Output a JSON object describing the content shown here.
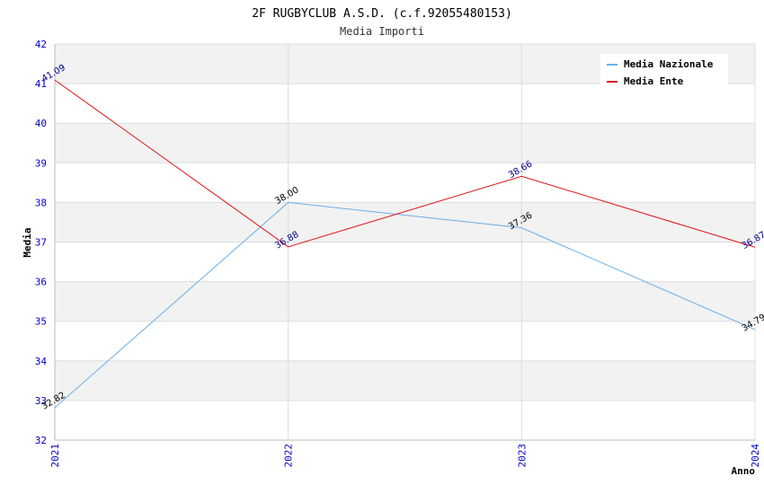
{
  "chart_data": {
    "type": "line",
    "title": "2F RUGBYCLUB A.S.D. (c.f.92055480153)",
    "subtitle": "Media Importi",
    "xlabel": "Anno",
    "ylabel": "Media",
    "categories": [
      "2021",
      "2022",
      "2023",
      "2024"
    ],
    "ylim": [
      32,
      42
    ],
    "yticks": [
      "32",
      "33",
      "34",
      "35",
      "36",
      "37",
      "38",
      "39",
      "40",
      "41",
      "42"
    ],
    "grid": true,
    "legend_position": "top-right",
    "series": [
      {
        "name": "Media Nazionale",
        "color": "#6aaee8",
        "label_color": "#000000",
        "values": [
          32.82,
          38.0,
          37.36,
          34.79
        ],
        "labels": [
          "32.82",
          "38.00",
          "37.36",
          "34.79"
        ]
      },
      {
        "name": "Media Ente",
        "color": "#e01010",
        "label_color": "#00008b",
        "values": [
          41.09,
          36.88,
          38.66,
          36.87
        ],
        "labels": [
          "41.09",
          "36.88",
          "38.66",
          "36.87"
        ]
      }
    ]
  }
}
